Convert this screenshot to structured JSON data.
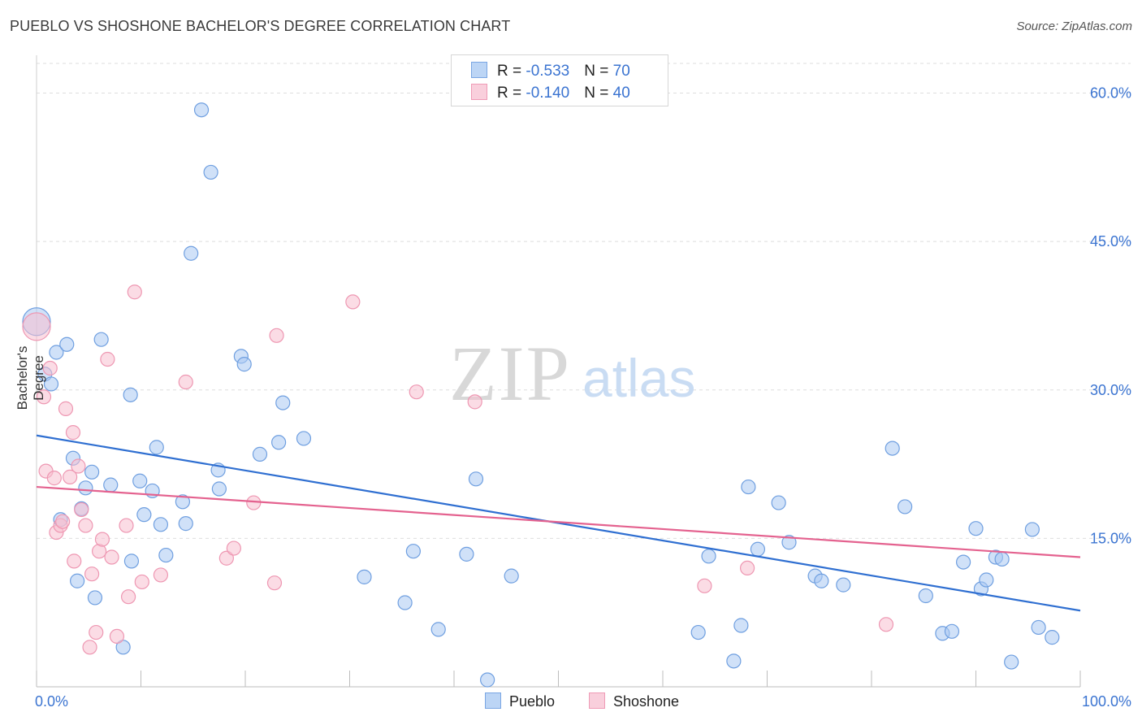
{
  "title": "PUEBLO VS SHOSHONE BACHELOR'S DEGREE CORRELATION CHART",
  "source": "Source: ZipAtlas.com",
  "watermark": {
    "zip": "ZIP",
    "atlas": "atlas"
  },
  "legend": {
    "rows": [
      {
        "r_label": "R = ",
        "r_value": "-0.533",
        "n_label": "N = ",
        "n_value": "70"
      },
      {
        "r_label": "R = ",
        "r_value": "-0.140",
        "n_label": "N = ",
        "n_value": "40"
      }
    ]
  },
  "colors": {
    "pueblo_fill": "#a9c8f2",
    "pueblo_stroke": "#6f9fe0",
    "pueblo_line": "#2f6fd1",
    "shoshone_fill": "#f7bfd0",
    "shoshone_stroke": "#ee97b2",
    "shoshone_line": "#e4628f",
    "tick_label": "#3b74d1",
    "grid": "#dedede"
  },
  "chart_data": {
    "type": "scatter",
    "title": "PUEBLO VS SHOSHONE BACHELOR'S DEGREE CORRELATION CHART",
    "xlabel": "",
    "ylabel": "Bachelor's Degree",
    "xlim": [
      0,
      100
    ],
    "ylim": [
      0,
      63
    ],
    "x_tick_labels": [
      "0.0%",
      "100.0%"
    ],
    "y_ticks": [
      15,
      30,
      45,
      60
    ],
    "y_tick_labels": [
      "15.0%",
      "30.0%",
      "45.0%",
      "60.0%"
    ],
    "series": [
      {
        "name": "Pueblo",
        "r": -0.533,
        "n": 70,
        "trend": {
          "x": [
            0,
            100
          ],
          "y": [
            25.4,
            7.7
          ]
        },
        "points": [
          {
            "x": 0.0,
            "y": 36.9,
            "big": true
          },
          {
            "x": 0.8,
            "y": 31.6
          },
          {
            "x": 1.4,
            "y": 30.6
          },
          {
            "x": 1.9,
            "y": 33.8
          },
          {
            "x": 2.3,
            "y": 16.9
          },
          {
            "x": 2.9,
            "y": 34.6
          },
          {
            "x": 3.5,
            "y": 23.1
          },
          {
            "x": 3.9,
            "y": 10.7
          },
          {
            "x": 4.3,
            "y": 18.0
          },
          {
            "x": 4.7,
            "y": 20.1
          },
          {
            "x": 5.3,
            "y": 21.7
          },
          {
            "x": 5.6,
            "y": 9.0
          },
          {
            "x": 6.2,
            "y": 35.1
          },
          {
            "x": 7.1,
            "y": 20.4
          },
          {
            "x": 8.3,
            "y": 4.0
          },
          {
            "x": 9.0,
            "y": 29.5
          },
          {
            "x": 9.1,
            "y": 12.7
          },
          {
            "x": 9.9,
            "y": 20.8
          },
          {
            "x": 10.3,
            "y": 17.4
          },
          {
            "x": 11.1,
            "y": 19.8
          },
          {
            "x": 11.5,
            "y": 24.2
          },
          {
            "x": 11.9,
            "y": 16.4
          },
          {
            "x": 12.4,
            "y": 13.3
          },
          {
            "x": 14.0,
            "y": 18.7
          },
          {
            "x": 14.3,
            "y": 16.5
          },
          {
            "x": 14.8,
            "y": 43.8
          },
          {
            "x": 15.8,
            "y": 58.3
          },
          {
            "x": 16.7,
            "y": 52.0
          },
          {
            "x": 17.4,
            "y": 21.9
          },
          {
            "x": 17.5,
            "y": 20.0
          },
          {
            "x": 19.6,
            "y": 33.4
          },
          {
            "x": 19.9,
            "y": 32.6
          },
          {
            "x": 21.4,
            "y": 23.5
          },
          {
            "x": 23.2,
            "y": 24.7
          },
          {
            "x": 23.6,
            "y": 28.7
          },
          {
            "x": 25.6,
            "y": 25.1
          },
          {
            "x": 31.4,
            "y": 11.1
          },
          {
            "x": 35.3,
            "y": 8.5
          },
          {
            "x": 36.1,
            "y": 13.7
          },
          {
            "x": 38.5,
            "y": 5.8
          },
          {
            "x": 41.2,
            "y": 13.4
          },
          {
            "x": 42.1,
            "y": 21.0
          },
          {
            "x": 43.2,
            "y": 0.7
          },
          {
            "x": 45.5,
            "y": 11.2
          },
          {
            "x": 63.4,
            "y": 5.5
          },
          {
            "x": 64.4,
            "y": 13.2
          },
          {
            "x": 66.8,
            "y": 2.6
          },
          {
            "x": 67.5,
            "y": 6.2
          },
          {
            "x": 68.2,
            "y": 20.2
          },
          {
            "x": 69.1,
            "y": 13.9
          },
          {
            "x": 71.1,
            "y": 18.6
          },
          {
            "x": 72.1,
            "y": 14.6
          },
          {
            "x": 74.6,
            "y": 11.2
          },
          {
            "x": 75.2,
            "y": 10.7
          },
          {
            "x": 77.3,
            "y": 10.3
          },
          {
            "x": 82.0,
            "y": 24.1
          },
          {
            "x": 83.2,
            "y": 18.2
          },
          {
            "x": 85.2,
            "y": 9.2
          },
          {
            "x": 86.8,
            "y": 5.4
          },
          {
            "x": 87.7,
            "y": 5.6
          },
          {
            "x": 88.8,
            "y": 12.6
          },
          {
            "x": 90.0,
            "y": 16.0
          },
          {
            "x": 90.5,
            "y": 9.9
          },
          {
            "x": 91.0,
            "y": 10.8
          },
          {
            "x": 91.9,
            "y": 13.1
          },
          {
            "x": 92.5,
            "y": 12.9
          },
          {
            "x": 93.4,
            "y": 2.5
          },
          {
            "x": 95.4,
            "y": 15.9
          },
          {
            "x": 96.0,
            "y": 6.0
          },
          {
            "x": 97.3,
            "y": 5.0
          }
        ]
      },
      {
        "name": "Shoshone",
        "r": -0.14,
        "n": 40,
        "trend": {
          "x": [
            0,
            100
          ],
          "y": [
            20.2,
            13.1
          ]
        },
        "points": [
          {
            "x": 0.0,
            "y": 36.4,
            "big": true
          },
          {
            "x": 0.7,
            "y": 29.3
          },
          {
            "x": 0.9,
            "y": 21.8
          },
          {
            "x": 1.3,
            "y": 32.2
          },
          {
            "x": 1.7,
            "y": 21.1
          },
          {
            "x": 1.9,
            "y": 15.6
          },
          {
            "x": 2.3,
            "y": 16.3
          },
          {
            "x": 2.5,
            "y": 16.7
          },
          {
            "x": 2.8,
            "y": 28.1
          },
          {
            "x": 3.2,
            "y": 21.2
          },
          {
            "x": 3.5,
            "y": 25.7
          },
          {
            "x": 3.6,
            "y": 12.7
          },
          {
            "x": 4.0,
            "y": 22.3
          },
          {
            "x": 4.3,
            "y": 17.9
          },
          {
            "x": 4.7,
            "y": 16.3
          },
          {
            "x": 5.1,
            "y": 4.0
          },
          {
            "x": 5.3,
            "y": 11.4
          },
          {
            "x": 5.7,
            "y": 5.5
          },
          {
            "x": 6.0,
            "y": 13.7
          },
          {
            "x": 6.3,
            "y": 14.9
          },
          {
            "x": 6.8,
            "y": 33.1
          },
          {
            "x": 7.2,
            "y": 13.1
          },
          {
            "x": 7.7,
            "y": 5.1
          },
          {
            "x": 8.6,
            "y": 16.3
          },
          {
            "x": 8.8,
            "y": 9.1
          },
          {
            "x": 9.4,
            "y": 39.9
          },
          {
            "x": 10.1,
            "y": 10.6
          },
          {
            "x": 11.9,
            "y": 11.3
          },
          {
            "x": 14.3,
            "y": 30.8
          },
          {
            "x": 18.2,
            "y": 13.0
          },
          {
            "x": 18.9,
            "y": 14.0
          },
          {
            "x": 20.8,
            "y": 18.6
          },
          {
            "x": 22.8,
            "y": 10.5
          },
          {
            "x": 23.0,
            "y": 35.5
          },
          {
            "x": 30.3,
            "y": 38.9
          },
          {
            "x": 36.4,
            "y": 29.8
          },
          {
            "x": 42.0,
            "y": 28.8
          },
          {
            "x": 64.0,
            "y": 10.2
          },
          {
            "x": 68.1,
            "y": 12.0
          },
          {
            "x": 81.4,
            "y": 6.3
          }
        ]
      }
    ]
  },
  "bottom_legend": [
    "Pueblo",
    "Shoshone"
  ]
}
